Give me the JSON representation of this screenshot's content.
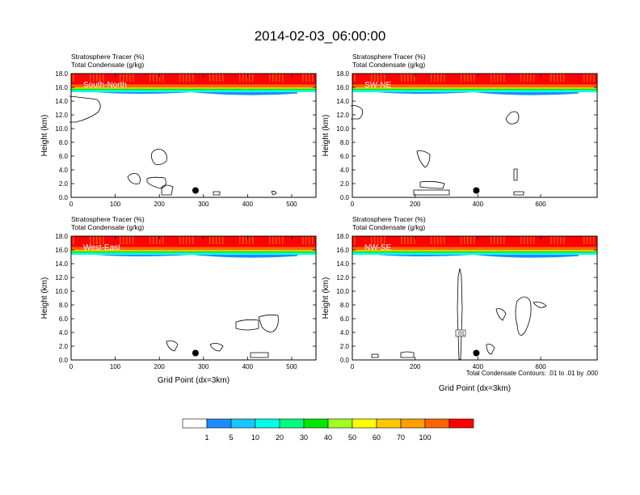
{
  "title": "2014-02-03_06:00:00",
  "legend": {
    "labels": [
      "1",
      "5",
      "10",
      "20",
      "30",
      "40",
      "50",
      "60",
      "70",
      "100"
    ],
    "colors": [
      "#ffffff",
      "#1e8cff",
      "#16c8ff",
      "#00ffe6",
      "#00ff7f",
      "#00e600",
      "#a0ff20",
      "#ffff00",
      "#ffc800",
      "#ffa000",
      "#ff6400",
      "#ff0000"
    ]
  },
  "contour_note": "Total Condensate Contours: .01 to .01 by .000",
  "chart_data": [
    {
      "type": "heatmap",
      "title": "South-North",
      "left_strings": [
        "Stratosphere Tracer   (%)",
        "Total Condensate   (g/kg)"
      ],
      "ylabel": "Height (km)",
      "xlabel": "",
      "xlim": [
        0,
        555
      ],
      "ylim": [
        0,
        18
      ],
      "xticks": [
        "0",
        "100",
        "200",
        "300",
        "400",
        "500"
      ],
      "yticks": [
        "0.0",
        "2.0",
        "4.0",
        "6.0",
        "8.0",
        "10.0",
        "12.0",
        "14.0",
        "16.0",
        "18.0"
      ],
      "marker": {
        "x": 282,
        "y": 1.0
      }
    },
    {
      "type": "heatmap",
      "title": "SW-NE",
      "left_strings": [
        "Stratosphere Tracer   (%)",
        "Total Condensate   (g/kg)"
      ],
      "ylabel": "Height (km)",
      "xlabel": "",
      "xlim": [
        0,
        780
      ],
      "ylim": [
        0,
        18
      ],
      "xticks": [
        "0",
        "200",
        "400",
        "600"
      ],
      "yticks": [
        "0.0",
        "2.0",
        "4.0",
        "6.0",
        "8.0",
        "10.0",
        "12.0",
        "14.0",
        "16.0",
        "18.0"
      ],
      "marker": {
        "x": 395,
        "y": 1.0
      }
    },
    {
      "type": "heatmap",
      "title": "West-East",
      "left_strings": [
        "Stratosphere Tracer   (%)",
        "Total Condensate   (g/kg)"
      ],
      "ylabel": "Height (km)",
      "xlabel": "Grid Point (dx=3km)",
      "xlim": [
        0,
        555
      ],
      "ylim": [
        0,
        18
      ],
      "xticks": [
        "0",
        "100",
        "200",
        "300",
        "400",
        "500"
      ],
      "yticks": [
        "0.0",
        "2.0",
        "4.0",
        "6.0",
        "8.0",
        "10.0",
        "12.0",
        "14.0",
        "16.0",
        "18.0"
      ],
      "marker": {
        "x": 282,
        "y": 1.0
      }
    },
    {
      "type": "heatmap",
      "title": "NW-SE",
      "left_strings": [
        "Stratosphere Tracer   (%)",
        "Total Condensate   (g/kg)"
      ],
      "ylabel": "Height (km)",
      "xlabel": "Grid Point (dx=3km)",
      "xlim": [
        0,
        780
      ],
      "ylim": [
        0,
        18
      ],
      "xticks": [
        "0",
        "200",
        "400",
        "600"
      ],
      "yticks": [
        "0.0",
        "2.0",
        "4.0",
        "6.0",
        "8.0",
        "10.0",
        "12.0",
        "14.0",
        "16.0",
        "18.0"
      ],
      "marker": {
        "x": 395,
        "y": 1.0
      },
      "contour_label": ".01"
    }
  ]
}
